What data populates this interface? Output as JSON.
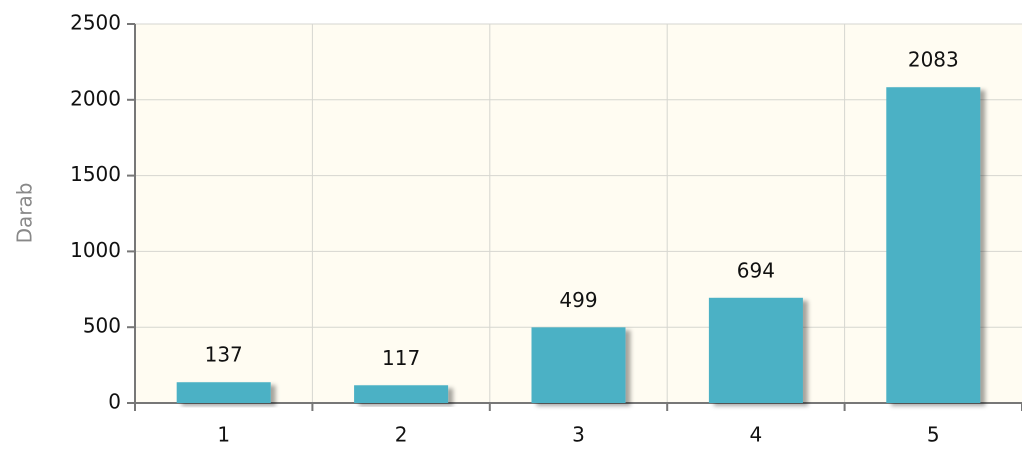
{
  "chart_data": {
    "type": "bar",
    "y_label": "Darab",
    "categories": [
      "1",
      "2",
      "3",
      "4",
      "5"
    ],
    "values": [
      137,
      117,
      499,
      694,
      2083
    ],
    "color": "#4bb1c5",
    "ylim": [
      0,
      2500
    ],
    "yticks": [
      0,
      500,
      1000,
      1500,
      2000,
      2500
    ],
    "grid": true,
    "data_labels": true
  }
}
